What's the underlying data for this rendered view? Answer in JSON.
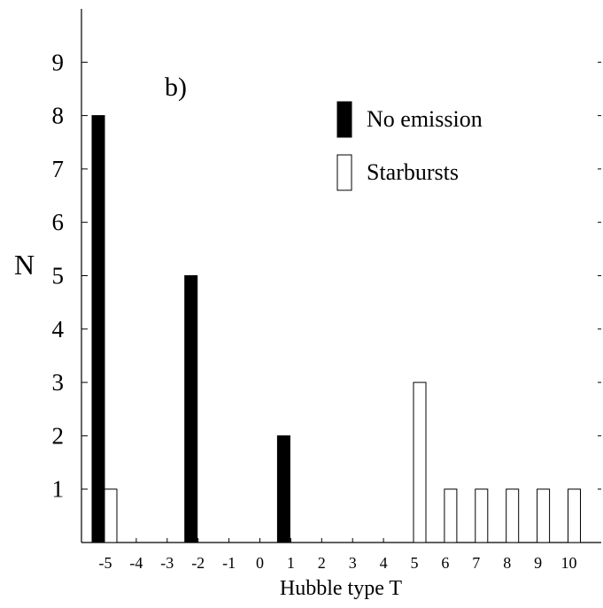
{
  "chart_data": {
    "type": "bar",
    "panel_label": "b)",
    "xlabel": "Hubble type T",
    "ylabel": "N",
    "x": [
      -5,
      -4,
      -3,
      -2,
      -1,
      0,
      1,
      2,
      3,
      4,
      5,
      6,
      7,
      8,
      9,
      10
    ],
    "ylim": [
      0,
      10
    ],
    "yticks": [
      1,
      2,
      3,
      4,
      5,
      6,
      7,
      8,
      9
    ],
    "grid": false,
    "legend_position": "top-right",
    "series": [
      {
        "name": "No emission",
        "fill": "#000000",
        "values": [
          8,
          0,
          0,
          5,
          0,
          0,
          2,
          0,
          0,
          0,
          0,
          0,
          0,
          0,
          0,
          0
        ]
      },
      {
        "name": "Starbursts",
        "fill": "#ffffff",
        "values": [
          1,
          0,
          0,
          0,
          0,
          0,
          0,
          0,
          0,
          0,
          3,
          1,
          1,
          1,
          1,
          1
        ]
      }
    ]
  }
}
